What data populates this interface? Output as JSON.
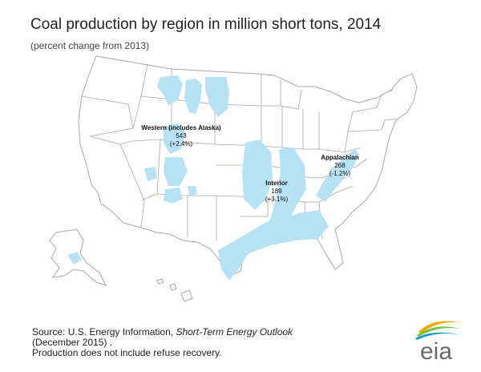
{
  "header": {
    "title": "Coal production by region in million short tons, 2014",
    "subtitle": "(percent change from 2013)"
  },
  "regions": [
    {
      "name": "Western (includes Alaska)",
      "value": "543",
      "change": "(+2.4%)"
    },
    {
      "name": "Interior",
      "value": "189",
      "change": "(+3.1%)"
    },
    {
      "name": "Appalachian",
      "value": "268",
      "change": "(-1.2%)"
    }
  ],
  "source": {
    "prefix": "Source: U.S. Energy Information,",
    "report": "Short-Term Energy Outlook",
    "date": "(December 2015) .",
    "note": "Production does not include refuse recovery."
  },
  "logo": {
    "text": "eia"
  },
  "colors": {
    "coal_basin": "#b7e2f3",
    "state_fill": "#ffffff",
    "state_border": "#a8a8a8",
    "logo_text": "#6a6a6a",
    "logo_swoosh_1": "#f2a900",
    "logo_swoosh_2": "#7ac043",
    "logo_swoosh_3": "#009ac7"
  }
}
